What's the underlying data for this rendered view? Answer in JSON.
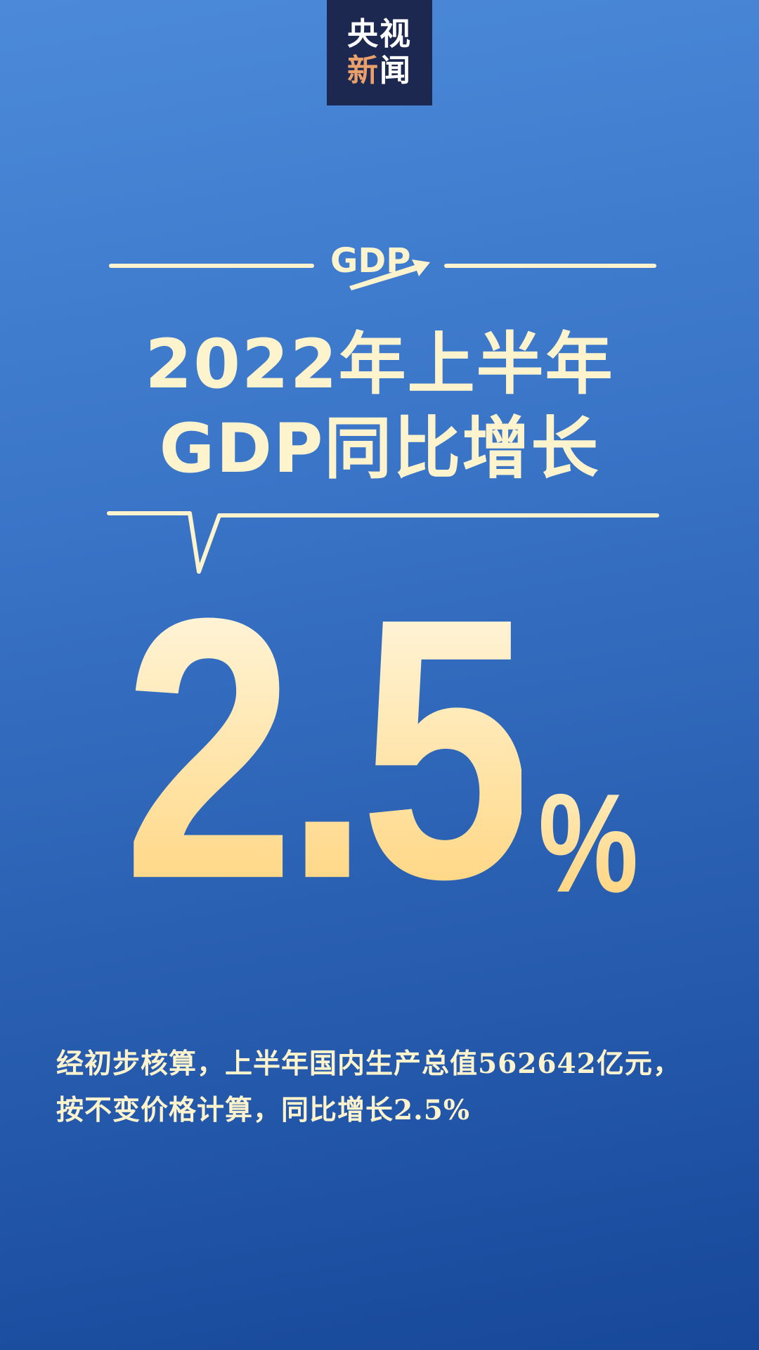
{
  "logo": {
    "line1": "央视",
    "line2a": "新",
    "line2b": "闻"
  },
  "gdp_badge": {
    "text": "GDP",
    "icon": "arrow-up-right-icon"
  },
  "title": {
    "line1": "2022年上半年",
    "line2": "GDP同比增长"
  },
  "headline_value": {
    "number": "2.5",
    "unit": "%"
  },
  "body": {
    "line1": "经初步核算，上半年国内生产总值562642亿元，",
    "line2": "按不变价格计算，同比增长2.5%"
  },
  "colors": {
    "background_top": "#4c8ad9",
    "background_bottom": "#17489a",
    "cream": "#fdf3cc",
    "gold": "#ffd27a",
    "logo_bg": "#1c2850",
    "logo_accent": "#e9a06b"
  }
}
